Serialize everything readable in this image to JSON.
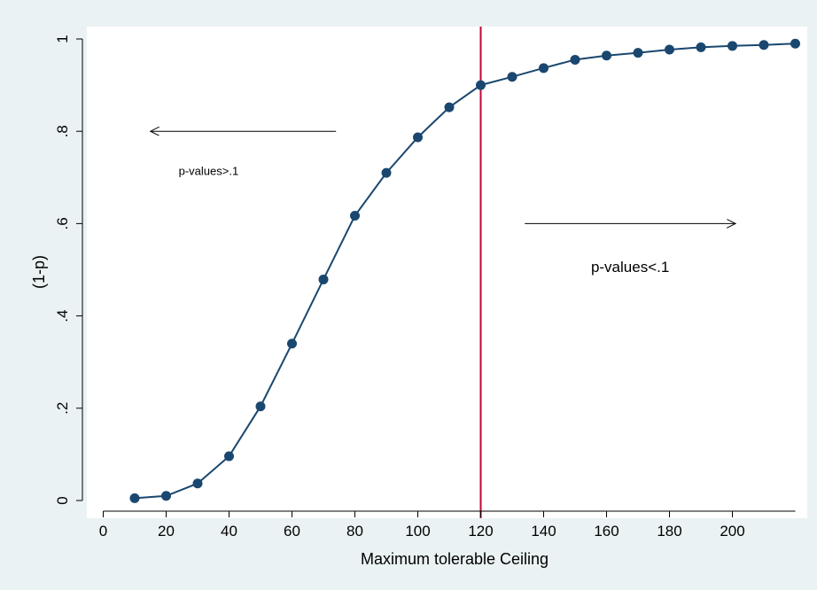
{
  "colors": {
    "background": "#eaf2f3",
    "plot_area": "#ffffff",
    "series": "#1a476f",
    "reference_line": "#c10534",
    "axis": "#000000"
  },
  "chart_data": {
    "type": "line",
    "title": "",
    "xlabel": "Maximum tolerable Ceiling",
    "ylabel": "(1-p)",
    "xlim": [
      0,
      220
    ],
    "ylim": [
      0,
      1
    ],
    "x_ticks": [
      "0",
      "20",
      "40",
      "60",
      "80",
      "100",
      "120",
      "140",
      "160",
      "180",
      "200"
    ],
    "y_ticks": [
      "0",
      ".2",
      ".4",
      ".6",
      ".8",
      "1"
    ],
    "y_tick_values": [
      0,
      0.2,
      0.4,
      0.6,
      0.8,
      1
    ],
    "grid": false,
    "markers": true,
    "x": [
      10,
      20,
      30,
      40,
      50,
      60,
      70,
      80,
      90,
      100,
      110,
      120,
      130,
      140,
      150,
      160,
      170,
      180,
      190,
      200,
      210,
      220
    ],
    "y": [
      0.005,
      0.01,
      0.037,
      0.096,
      0.204,
      0.34,
      0.479,
      0.617,
      0.71,
      0.787,
      0.852,
      0.9,
      0.918,
      0.937,
      0.955,
      0.964,
      0.97,
      0.977,
      0.982,
      0.985,
      0.987,
      0.99
    ],
    "reference_line": {
      "axis": "x",
      "value": 120
    },
    "annotations": [
      {
        "text": "p-values>.1",
        "arrow": "left",
        "arrow_from_x": 74,
        "arrow_to_x": 15,
        "arrow_y": 0.8,
        "text_x": 33.5,
        "text_y": 0.715
      },
      {
        "text": "p-values<.1",
        "arrow": "right",
        "arrow_from_x": 134,
        "arrow_to_x": 201,
        "arrow_y": 0.6,
        "text_x": 167.5,
        "text_y": 0.505
      }
    ]
  }
}
